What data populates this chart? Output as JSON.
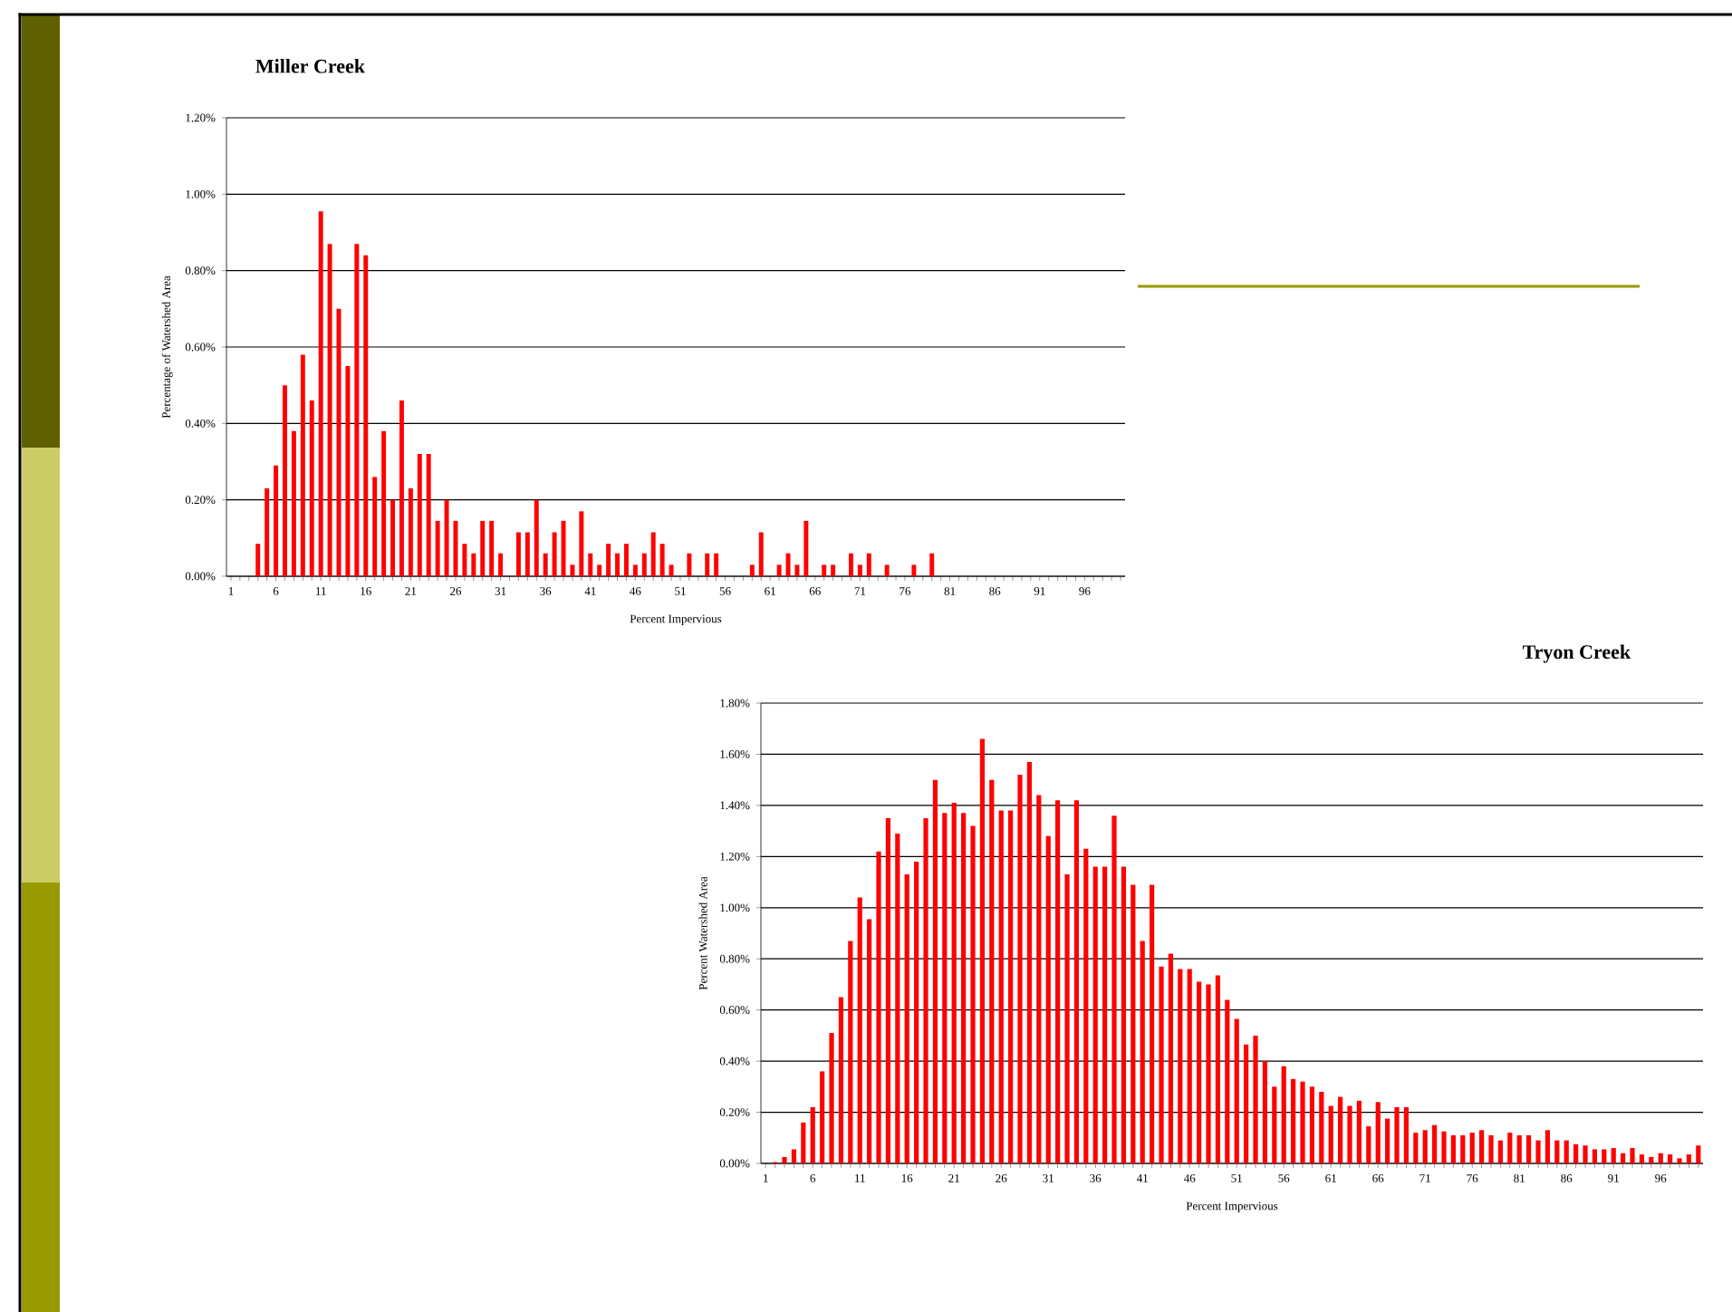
{
  "chart_data": [
    {
      "type": "bar",
      "title": "Miller Creek",
      "xlabel": "Percent Impervious",
      "ylabel": "Percentage of Watershed Area",
      "color": "#ff0000",
      "grid": "y",
      "categories": [
        "1",
        null,
        null,
        null,
        null,
        "6",
        null,
        null,
        null,
        null,
        "11",
        null,
        null,
        null,
        null,
        "16",
        null,
        null,
        null,
        null,
        "21",
        null,
        null,
        null,
        null,
        "26",
        null,
        null,
        null,
        null,
        "31",
        null,
        null,
        null,
        null,
        "36",
        null,
        null,
        null,
        null,
        "41",
        null,
        null,
        null,
        null,
        "46",
        null,
        null,
        null,
        null,
        "51",
        null,
        null,
        null,
        null,
        "56",
        null,
        null,
        null,
        null,
        "61",
        null,
        null,
        null,
        null,
        "66",
        null,
        null,
        null,
        null,
        "71",
        null,
        null,
        null,
        null,
        "76",
        null,
        null,
        null,
        null,
        "81",
        null,
        null,
        null,
        null,
        "86",
        null,
        null,
        null,
        null,
        "91",
        null,
        null,
        null,
        null,
        "96",
        null,
        null,
        null,
        null
      ],
      "values": [
        null,
        null,
        null,
        0.085,
        0.23,
        0.29,
        0.5,
        0.38,
        0.58,
        0.46,
        0.955,
        0.87,
        0.7,
        0.55,
        0.87,
        0.84,
        0.26,
        0.38,
        0.2,
        0.46,
        0.23,
        0.32,
        0.32,
        0.145,
        0.2,
        0.145,
        0.085,
        0.06,
        0.145,
        0.145,
        0.06,
        null,
        0.115,
        0.115,
        0.2,
        0.06,
        0.115,
        0.145,
        0.03,
        0.17,
        0.06,
        0.03,
        0.085,
        0.06,
        0.085,
        0.03,
        0.06,
        0.115,
        0.085,
        0.03,
        null,
        0.06,
        null,
        0.06,
        0.06,
        null,
        null,
        null,
        0.03,
        0.115,
        null,
        0.03,
        0.06,
        0.03,
        0.145,
        null,
        0.03,
        0.03,
        null,
        0.06,
        0.03,
        0.06,
        null,
        0.03,
        null,
        null,
        0.03,
        null,
        0.06,
        null,
        null,
        null,
        null,
        null,
        null,
        null,
        null,
        null,
        null,
        null,
        null,
        null,
        null,
        null,
        null,
        null,
        null,
        null,
        null,
        null
      ],
      "ylim": [
        0,
        1.2
      ],
      "yticks": [
        {
          "value": 0,
          "label": "0.00%"
        },
        {
          "value": 0.2,
          "label": "0.20%"
        },
        {
          "value": 0.4,
          "label": "0.40%"
        },
        {
          "value": 0.6,
          "label": "0.60%"
        },
        {
          "value": 0.8,
          "label": "0.80%"
        },
        {
          "value": 1.0,
          "label": "1.00%"
        },
        {
          "value": 1.2,
          "label": "1.20%"
        }
      ]
    },
    {
      "type": "bar",
      "title": "Tryon Creek",
      "xlabel": "Percent Impervious",
      "ylabel": "Percent Watershed Area",
      "color": "#ff0000",
      "grid": "y",
      "categories": [
        "1",
        null,
        null,
        null,
        null,
        "6",
        null,
        null,
        null,
        null,
        "11",
        null,
        null,
        null,
        null,
        "16",
        null,
        null,
        null,
        null,
        "21",
        null,
        null,
        null,
        null,
        "26",
        null,
        null,
        null,
        null,
        "31",
        null,
        null,
        null,
        null,
        "36",
        null,
        null,
        null,
        null,
        "41",
        null,
        null,
        null,
        null,
        "46",
        null,
        null,
        null,
        null,
        "51",
        null,
        null,
        null,
        null,
        "56",
        null,
        null,
        null,
        null,
        "61",
        null,
        null,
        null,
        null,
        "66",
        null,
        null,
        null,
        null,
        "71",
        null,
        null,
        null,
        null,
        "76",
        null,
        null,
        null,
        null,
        "81",
        null,
        null,
        null,
        null,
        "86",
        null,
        null,
        null,
        null,
        "91",
        null,
        null,
        null,
        null,
        "96",
        null,
        null,
        null,
        null
      ],
      "values": [
        null,
        0.005,
        0.025,
        0.055,
        0.16,
        0.22,
        0.36,
        0.51,
        0.65,
        0.87,
        1.04,
        0.955,
        1.22,
        1.35,
        1.29,
        1.13,
        1.18,
        1.35,
        1.5,
        1.37,
        1.41,
        1.37,
        1.32,
        1.66,
        1.5,
        1.38,
        1.38,
        1.52,
        1.57,
        1.44,
        1.28,
        1.42,
        1.13,
        1.42,
        1.23,
        1.16,
        1.16,
        1.36,
        1.16,
        1.09,
        0.87,
        1.09,
        0.77,
        0.82,
        0.76,
        0.76,
        0.71,
        0.7,
        0.735,
        0.64,
        0.565,
        0.465,
        0.5,
        0.4,
        0.3,
        0.38,
        0.33,
        0.32,
        0.3,
        0.28,
        0.225,
        0.26,
        0.225,
        0.245,
        0.145,
        0.24,
        0.175,
        0.22,
        0.22,
        0.12,
        0.13,
        0.15,
        0.125,
        0.11,
        0.11,
        0.12,
        0.13,
        0.11,
        0.09,
        0.12,
        0.11,
        0.11,
        0.09,
        0.13,
        0.09,
        0.09,
        0.075,
        0.07,
        0.055,
        0.055,
        0.06,
        0.04,
        0.06,
        0.035,
        0.025,
        0.04,
        0.035,
        0.02,
        0.035,
        0.07
      ],
      "ylim": [
        0,
        1.8
      ],
      "yticks": [
        {
          "value": 0,
          "label": "0.00%"
        },
        {
          "value": 0.2,
          "label": "0.20%"
        },
        {
          "value": 0.4,
          "label": "0.40%"
        },
        {
          "value": 0.6,
          "label": "0.60%"
        },
        {
          "value": 0.8,
          "label": "0.80%"
        },
        {
          "value": 1.0,
          "label": "1.00%"
        },
        {
          "value": 1.2,
          "label": "1.20%"
        },
        {
          "value": 1.4,
          "label": "1.40%"
        },
        {
          "value": 1.6,
          "label": "1.60%"
        },
        {
          "value": 1.8,
          "label": "1.80%"
        }
      ]
    }
  ]
}
